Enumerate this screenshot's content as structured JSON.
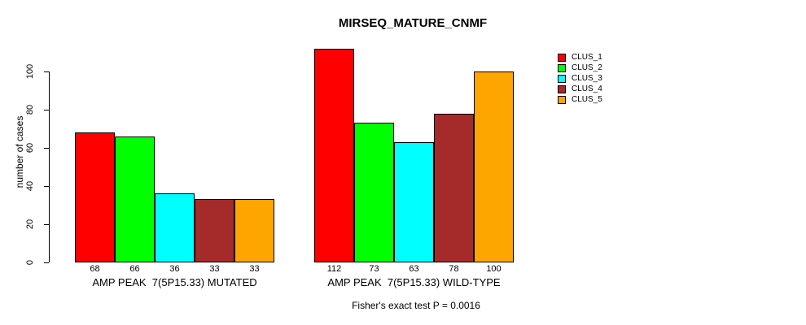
{
  "chart_data": {
    "type": "bar",
    "title": "MIRSEQ_MATURE_CNMF",
    "ylabel": "number of cases",
    "xlabel": "",
    "categories": [
      "AMP PEAK  7(5P15.33) MUTATED",
      "AMP PEAK  7(5P15.33) WILD-TYPE"
    ],
    "series": [
      {
        "name": "CLUS_1",
        "color": "#FF0000",
        "values": [
          68,
          112
        ]
      },
      {
        "name": "CLUS_2",
        "color": "#00FF00",
        "values": [
          66,
          73
        ]
      },
      {
        "name": "CLUS_3",
        "color": "#00FFFF",
        "values": [
          36,
          63
        ]
      },
      {
        "name": "CLUS_4",
        "color": "#A52A2A",
        "values": [
          33,
          78
        ]
      },
      {
        "name": "CLUS_5",
        "color": "#FFA500",
        "values": [
          33,
          100
        ]
      }
    ],
    "yticks": [
      0,
      20,
      40,
      60,
      80,
      100
    ],
    "ylim": [
      0,
      112
    ],
    "grid": false,
    "legend_position": "right",
    "bar_value_labels": true,
    "annotation": "Fisher's exact test P = 0.0016"
  }
}
